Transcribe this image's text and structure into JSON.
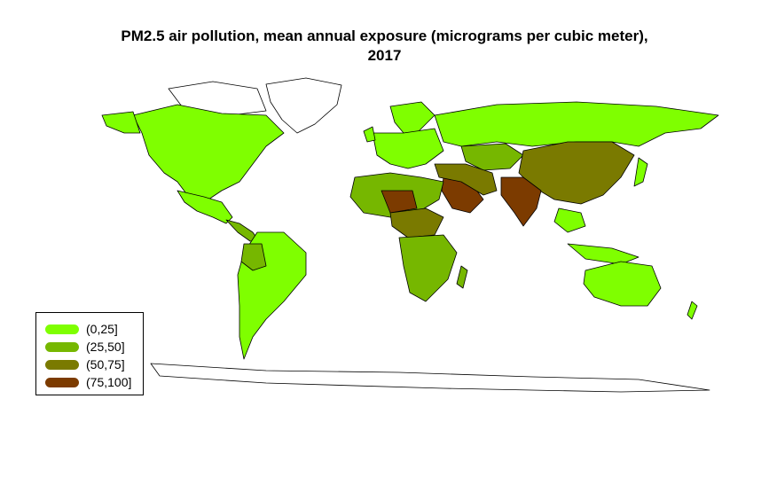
{
  "title": {
    "line1": "PM2.5 air pollution, mean annual exposure (micrograms per cubic meter),",
    "line2": "2017"
  },
  "legend": {
    "items": [
      {
        "label": "(0,25]",
        "color": "#7fff00"
      },
      {
        "label": "(25,50]",
        "color": "#76b700"
      },
      {
        "label": "(50,75]",
        "color": "#7a7a00"
      },
      {
        "label": "(75,100]",
        "color": "#7c3b00"
      }
    ]
  },
  "colors": {
    "low": "#7fff00",
    "mid_low": "#76b700",
    "mid_high": "#7a7a00",
    "high": "#7c3b00",
    "no_data": "#ffffff",
    "border": "#000000"
  }
}
